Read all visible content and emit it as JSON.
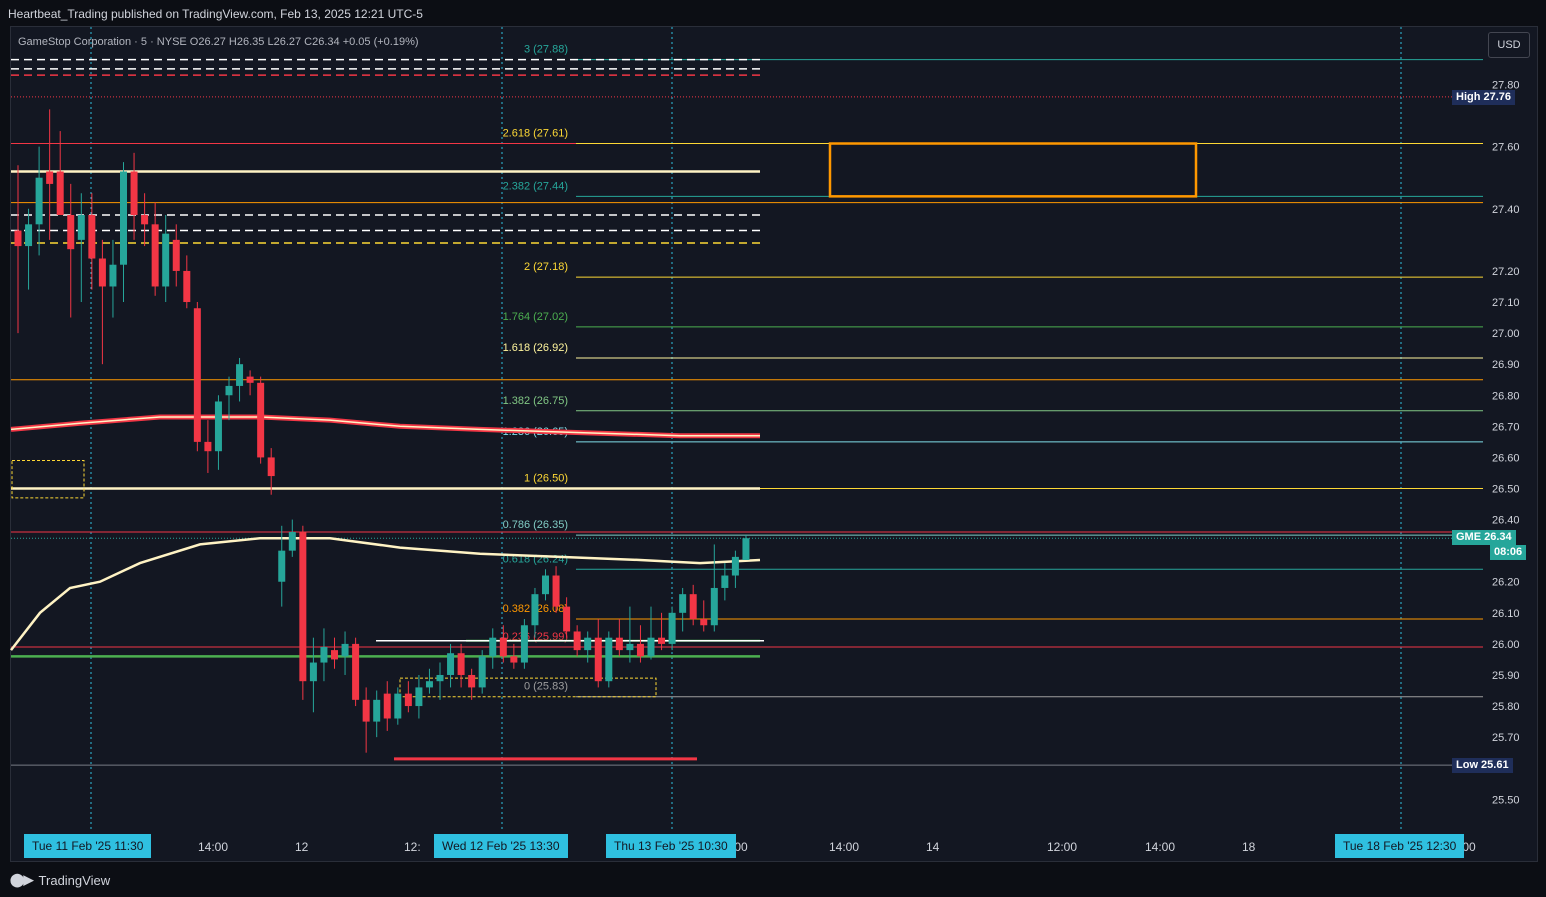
{
  "header": {
    "attribution": "Heartbeat_Trading published on TradingView.com, Feb 13, 2025 12:21 UTC-5"
  },
  "legend": {
    "text": "GameStop Corporation · 5 · NYSE  O26.27  H26.35  L26.27  C26.34  +0.05 (+0.19%)"
  },
  "toolbar": {
    "currency": "USD"
  },
  "footer": {
    "brand": "TradingView"
  },
  "colors": {
    "up": "#26a69a",
    "down": "#f23645",
    "background": "#131722",
    "accent": "#2fc0e0",
    "box": "#ff9800"
  },
  "chart_data": {
    "type": "candlestick",
    "symbol": "GME",
    "ylim": [
      25.45,
      27.95
    ],
    "y_ticks": [
      25.5,
      25.7,
      25.8,
      25.9,
      26.0,
      26.1,
      26.2,
      26.4,
      26.5,
      26.6,
      26.7,
      26.8,
      26.9,
      27.0,
      27.1,
      27.2,
      27.4,
      27.6,
      27.8
    ],
    "y_tick_labels": [
      "25.50",
      "25.70",
      "25.80",
      "25.90",
      "26.00",
      "26.10",
      "26.20",
      "26.40",
      "26.50",
      "26.60",
      "26.70",
      "26.80",
      "26.90",
      "27.00",
      "27.10",
      "27.20",
      "27.40",
      "27.60",
      "27.80"
    ],
    "x_labels": [
      "14:00",
      "12",
      "12:",
      ":00",
      "14:00",
      "14",
      "12:00",
      "14:00",
      "18",
      ":00"
    ],
    "time_tags": [
      "Tue 11 Feb '25   11:30",
      "Wed 12 Feb '25   13:30",
      "Thu 13 Feb '25   10:30",
      "Tue 18 Feb '25   12:30"
    ],
    "price_tags": {
      "high": {
        "label": "High",
        "value": "27.76"
      },
      "current": {
        "label": "GME",
        "value": "26.34",
        "countdown": "08:06"
      },
      "low": {
        "label": "Low",
        "value": "25.61"
      }
    },
    "fib_levels": [
      {
        "label": "3 (27.88)",
        "price": 27.88,
        "color": "#26a69a"
      },
      {
        "label": "2.618 (27.61)",
        "price": 27.61,
        "color": "#fdd835"
      },
      {
        "label": "2.382 (27.44)",
        "price": 27.44,
        "color": "#26a69a"
      },
      {
        "label": "2 (27.18)",
        "price": 27.18,
        "color": "#fdd835"
      },
      {
        "label": "1.764 (27.02)",
        "price": 27.02,
        "color": "#4caf50"
      },
      {
        "label": "1.618 (26.92)",
        "price": 26.92,
        "color": "#fff59d"
      },
      {
        "label": "1.382 (26.75)",
        "price": 26.75,
        "color": "#81c784"
      },
      {
        "label": "1.236 (26.65)",
        "price": 26.65,
        "color": "#80deea"
      },
      {
        "label": "1 (26.50)",
        "price": 26.5,
        "color": "#fdd835"
      },
      {
        "label": "0.786 (26.35)",
        "price": 26.35,
        "color": "#80cbc4"
      },
      {
        "label": "0.618 (26.24)",
        "price": 26.24,
        "color": "#26a69a"
      },
      {
        "label": "0.382 (26.08)",
        "price": 26.08,
        "color": "#ff9800"
      },
      {
        "label": "0.236 (25.99)",
        "price": 25.99,
        "color": "#f23645"
      },
      {
        "label": "0 (25.83)",
        "price": 25.83,
        "color": "#9e9e9e"
      }
    ],
    "candles": [
      {
        "o": 27.33,
        "h": 27.54,
        "l": 27.0,
        "c": 27.28
      },
      {
        "o": 27.28,
        "h": 27.4,
        "l": 27.14,
        "c": 27.35
      },
      {
        "o": 27.35,
        "h": 27.6,
        "l": 27.25,
        "c": 27.5
      },
      {
        "o": 27.52,
        "h": 27.72,
        "l": 27.3,
        "c": 27.48
      },
      {
        "o": 27.52,
        "h": 27.65,
        "l": 27.38,
        "c": 27.38
      },
      {
        "o": 27.38,
        "h": 27.48,
        "l": 27.05,
        "c": 27.27
      },
      {
        "o": 27.3,
        "h": 27.45,
        "l": 27.1,
        "c": 27.38
      },
      {
        "o": 27.38,
        "h": 27.45,
        "l": 27.14,
        "c": 27.24
      },
      {
        "o": 27.24,
        "h": 27.3,
        "l": 26.9,
        "c": 27.15
      },
      {
        "o": 27.15,
        "h": 27.3,
        "l": 27.05,
        "c": 27.22
      },
      {
        "o": 27.22,
        "h": 27.55,
        "l": 27.1,
        "c": 27.52
      },
      {
        "o": 27.52,
        "h": 27.58,
        "l": 27.3,
        "c": 27.38
      },
      {
        "o": 27.38,
        "h": 27.45,
        "l": 27.28,
        "c": 27.35
      },
      {
        "o": 27.35,
        "h": 27.42,
        "l": 27.12,
        "c": 27.15
      },
      {
        "o": 27.15,
        "h": 27.38,
        "l": 27.1,
        "c": 27.32
      },
      {
        "o": 27.3,
        "h": 27.35,
        "l": 27.15,
        "c": 27.2
      },
      {
        "o": 27.2,
        "h": 27.25,
        "l": 27.08,
        "c": 27.1
      },
      {
        "o": 27.08,
        "h": 27.1,
        "l": 26.62,
        "c": 26.65
      },
      {
        "o": 26.65,
        "h": 26.72,
        "l": 26.55,
        "c": 26.62
      },
      {
        "o": 26.62,
        "h": 26.8,
        "l": 26.56,
        "c": 26.78
      },
      {
        "o": 26.8,
        "h": 26.86,
        "l": 26.72,
        "c": 26.83
      },
      {
        "o": 26.83,
        "h": 26.92,
        "l": 26.78,
        "c": 26.9
      },
      {
        "o": 26.86,
        "h": 26.88,
        "l": 26.8,
        "c": 26.84
      },
      {
        "o": 26.84,
        "h": 26.86,
        "l": 26.58,
        "c": 26.6
      },
      {
        "o": 26.6,
        "h": 26.63,
        "l": 26.48,
        "c": 26.54
      },
      {
        "o": 26.2,
        "h": 26.38,
        "l": 26.12,
        "c": 26.3
      },
      {
        "o": 26.3,
        "h": 26.4,
        "l": 26.28,
        "c": 26.36
      },
      {
        "o": 26.36,
        "h": 26.38,
        "l": 25.82,
        "c": 25.88
      },
      {
        "o": 25.88,
        "h": 26.02,
        "l": 25.78,
        "c": 25.94
      },
      {
        "o": 25.94,
        "h": 26.05,
        "l": 25.88,
        "c": 25.99
      },
      {
        "o": 25.98,
        "h": 26.02,
        "l": 25.92,
        "c": 25.95
      },
      {
        "o": 25.96,
        "h": 26.04,
        "l": 25.9,
        "c": 26.0
      },
      {
        "o": 26.0,
        "h": 26.02,
        "l": 25.8,
        "c": 25.82
      },
      {
        "o": 25.82,
        "h": 25.86,
        "l": 25.65,
        "c": 25.75
      },
      {
        "o": 25.75,
        "h": 25.85,
        "l": 25.7,
        "c": 25.82
      },
      {
        "o": 25.84,
        "h": 25.88,
        "l": 25.72,
        "c": 25.76
      },
      {
        "o": 25.76,
        "h": 25.86,
        "l": 25.74,
        "c": 25.84
      },
      {
        "o": 25.84,
        "h": 25.88,
        "l": 25.78,
        "c": 25.8
      },
      {
        "o": 25.8,
        "h": 25.9,
        "l": 25.76,
        "c": 25.86
      },
      {
        "o": 25.86,
        "h": 25.92,
        "l": 25.84,
        "c": 25.88
      },
      {
        "o": 25.88,
        "h": 25.94,
        "l": 25.82,
        "c": 25.9
      },
      {
        "o": 25.9,
        "h": 26.0,
        "l": 25.86,
        "c": 25.97
      },
      {
        "o": 25.97,
        "h": 26.0,
        "l": 25.86,
        "c": 25.9
      },
      {
        "o": 25.9,
        "h": 25.92,
        "l": 25.82,
        "c": 25.86
      },
      {
        "o": 25.86,
        "h": 25.98,
        "l": 25.84,
        "c": 25.96
      },
      {
        "o": 25.96,
        "h": 26.05,
        "l": 25.92,
        "c": 26.02
      },
      {
        "o": 26.02,
        "h": 26.06,
        "l": 25.94,
        "c": 25.96
      },
      {
        "o": 25.96,
        "h": 26.0,
        "l": 25.92,
        "c": 25.94
      },
      {
        "o": 25.94,
        "h": 26.08,
        "l": 25.92,
        "c": 26.06
      },
      {
        "o": 26.06,
        "h": 26.18,
        "l": 26.02,
        "c": 26.16
      },
      {
        "o": 26.16,
        "h": 26.24,
        "l": 26.14,
        "c": 26.22
      },
      {
        "o": 26.22,
        "h": 26.25,
        "l": 26.1,
        "c": 26.12
      },
      {
        "o": 26.12,
        "h": 26.15,
        "l": 26.02,
        "c": 26.04
      },
      {
        "o": 26.04,
        "h": 26.06,
        "l": 25.96,
        "c": 25.98
      },
      {
        "o": 25.98,
        "h": 26.04,
        "l": 25.94,
        "c": 26.02
      },
      {
        "o": 26.02,
        "h": 26.08,
        "l": 25.86,
        "c": 25.88
      },
      {
        "o": 25.88,
        "h": 26.04,
        "l": 25.86,
        "c": 26.02
      },
      {
        "o": 26.02,
        "h": 26.08,
        "l": 25.96,
        "c": 25.98
      },
      {
        "o": 25.98,
        "h": 26.12,
        "l": 25.94,
        "c": 26.0
      },
      {
        "o": 26.0,
        "h": 26.06,
        "l": 25.94,
        "c": 25.96
      },
      {
        "o": 25.96,
        "h": 26.12,
        "l": 25.95,
        "c": 26.02
      },
      {
        "o": 26.02,
        "h": 26.1,
        "l": 25.98,
        "c": 26.0
      },
      {
        "o": 26.0,
        "h": 26.12,
        "l": 25.98,
        "c": 26.1
      },
      {
        "o": 26.1,
        "h": 26.18,
        "l": 26.04,
        "c": 26.16
      },
      {
        "o": 26.16,
        "h": 26.19,
        "l": 26.06,
        "c": 26.08
      },
      {
        "o": 26.08,
        "h": 26.14,
        "l": 26.04,
        "c": 26.06
      },
      {
        "o": 26.06,
        "h": 26.32,
        "l": 26.04,
        "c": 26.18
      },
      {
        "o": 26.18,
        "h": 26.26,
        "l": 26.14,
        "c": 26.22
      },
      {
        "o": 26.22,
        "h": 26.3,
        "l": 26.18,
        "c": 26.28
      },
      {
        "o": 26.27,
        "h": 26.35,
        "l": 26.27,
        "c": 26.34
      }
    ]
  }
}
